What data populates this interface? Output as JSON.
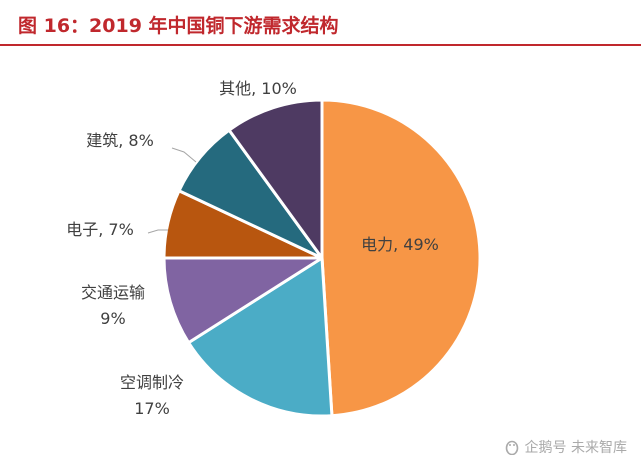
{
  "title": "图 16：2019 年中国铜下游需求结构",
  "watermark": "企鹅号 未来智库",
  "chart_data": {
    "type": "pie",
    "title": "图 16：2019 年中国铜下游需求结构",
    "slices": [
      {
        "label": "电力",
        "value": 49,
        "color": "#f79646",
        "text": [
          "电力, 49%"
        ]
      },
      {
        "label": "空调制冷",
        "value": 17,
        "color": "#4bacc6",
        "text": [
          "空调制冷",
          "17%"
        ]
      },
      {
        "label": "交通运输",
        "value": 9,
        "color": "#8064a2",
        "text": [
          "交通运输",
          "9%"
        ]
      },
      {
        "label": "电子",
        "value": 7,
        "color": "#b8560f",
        "text": [
          "电子, 7%"
        ]
      },
      {
        "label": "建筑",
        "value": 8,
        "color": "#256a7e",
        "text": [
          "建筑, 8%"
        ]
      },
      {
        "label": "其他",
        "value": 10,
        "color": "#4e3a62",
        "text": [
          "其他, 10%"
        ]
      }
    ]
  }
}
